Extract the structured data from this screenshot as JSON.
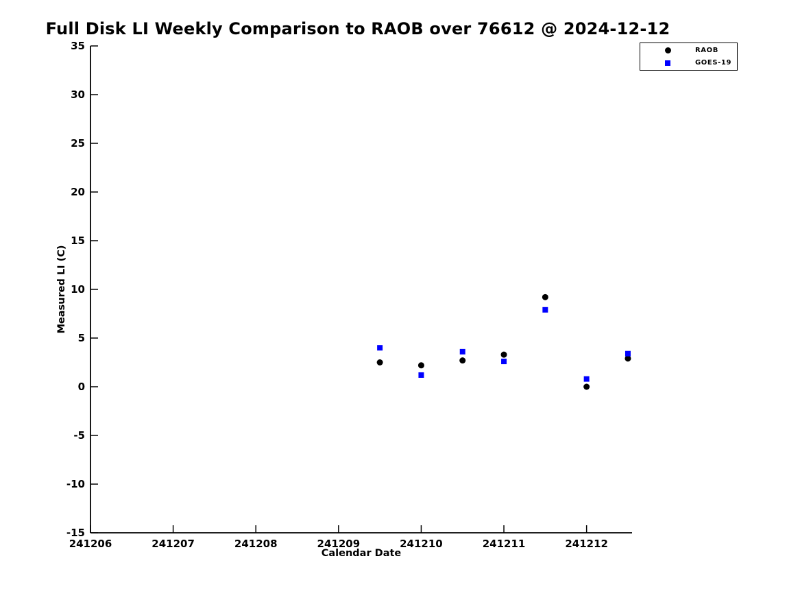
{
  "chart_data": {
    "type": "scatter",
    "title": "Full Disk LI Weekly Comparison to RAOB over 76612 @ 2024-12-12",
    "xlabel": "Calendar Date",
    "ylabel": "Measured LI (C)",
    "xlim": [
      241206,
      241212.55
    ],
    "ylim": [
      -15,
      35
    ],
    "x_ticks": [
      241206,
      241207,
      241208,
      241209,
      241210,
      241211,
      241212
    ],
    "y_ticks": [
      -15,
      -10,
      -5,
      0,
      5,
      10,
      15,
      20,
      25,
      30,
      35
    ],
    "grid": false,
    "legend_position": "top-right",
    "background_color": "#ffffff",
    "axis_color": "#000000",
    "series": [
      {
        "name": "RAOB",
        "marker": "circle",
        "color": "#000000",
        "x": [
          241209.5,
          241210.0,
          241210.5,
          241211.0,
          241211.5,
          241212.0,
          241212.5
        ],
        "y": [
          2.5,
          2.2,
          2.7,
          3.3,
          9.2,
          0.0,
          2.9
        ]
      },
      {
        "name": "GOES-19",
        "marker": "square",
        "color": "#0000ff",
        "x": [
          241209.5,
          241210.0,
          241210.5,
          241211.0,
          241211.5,
          241212.0,
          241212.5
        ],
        "y": [
          4.0,
          1.2,
          3.6,
          2.6,
          7.9,
          0.8,
          3.4
        ]
      }
    ]
  }
}
